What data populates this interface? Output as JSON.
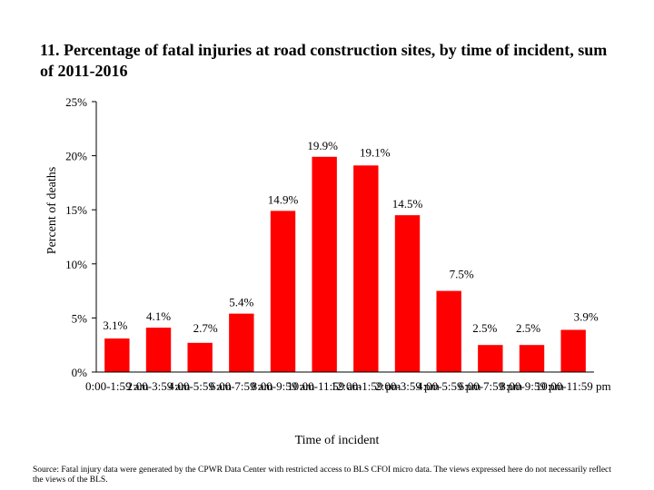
{
  "chart_data": {
    "type": "bar",
    "title": "11. Percentage of fatal injuries at road construction sites, by time of incident, sum of 2011-2016",
    "xlabel": "Time of incident",
    "ylabel": "Percent of deaths",
    "ylim": [
      0,
      25
    ],
    "yticks": [
      "0%",
      "5%",
      "10%",
      "15%",
      "20%",
      "25%"
    ],
    "ytick_values": [
      0,
      5,
      10,
      15,
      20,
      25
    ],
    "grid": false,
    "legend": "none",
    "bar_color": "#ff0000",
    "categories": [
      "0:00-1:59 am",
      "2:00-3:59 am",
      "4:00-5:59 am",
      "6:00-7:59 am",
      "8:00-9:59 am",
      "10:00-11:59 am",
      "12:00-1:59 pm",
      "2:00-3:59 pm",
      "4:00-5:59 pm",
      "6:00-7:59 pm",
      "8:00-9:59 pm",
      "10:00-11:59 pm"
    ],
    "values": [
      3.1,
      4.1,
      2.7,
      5.4,
      14.9,
      19.9,
      19.1,
      14.5,
      7.5,
      2.5,
      2.5,
      3.9
    ],
    "value_labels": [
      "3.1%",
      "4.1%",
      "2.7%",
      "5.4%",
      "14.9%",
      "19.9%",
      "19.1%",
      "14.5%",
      "7.5%",
      "2.5%",
      "2.5%",
      "3.9%"
    ]
  },
  "source_note": "Source: Fatal injury data were generated by the CPWR Data Center with restricted access to BLS CFOI micro data. The views expressed here do not necessarily reflect the views of the BLS."
}
